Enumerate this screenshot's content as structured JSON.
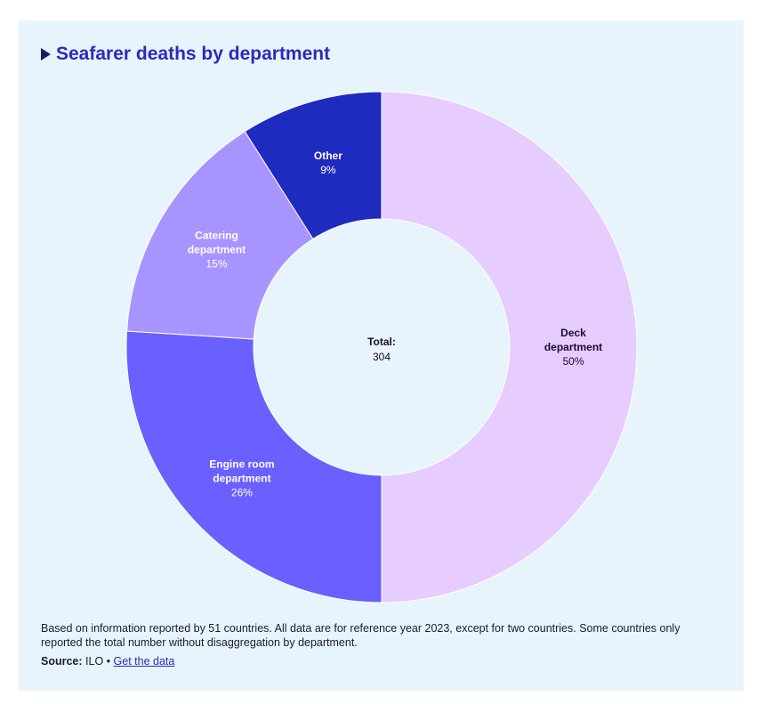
{
  "title": "Seafarer deaths by department",
  "chart_data": {
    "type": "pie",
    "variant": "donut",
    "categories": [
      "Deck department",
      "Engine room department",
      "Catering department",
      "Other"
    ],
    "percentages": [
      50,
      26,
      15,
      9
    ],
    "percent_labels": [
      "50%",
      "26%",
      "15%",
      "9%"
    ],
    "label_lines": [
      [
        "Deck",
        "department"
      ],
      [
        "Engine room",
        "department"
      ],
      [
        "Catering",
        "department"
      ],
      [
        "Other"
      ]
    ],
    "colors": [
      "#e6ccff",
      "#6a5fff",
      "#a894ff",
      "#1f2bbf"
    ],
    "label_colors": [
      "#1a0a33",
      "#ffffff",
      "#ffffff",
      "#ffffff"
    ],
    "center_label": "Total:",
    "total": "304",
    "legend": "none"
  },
  "footnote": "Based on information reported by 51 countries. All data are for reference year 2023, except for two countries. Some countries only reported the total number without disaggregation by department.",
  "source": {
    "label": "Source:",
    "value": "ILO",
    "separator": "•",
    "link_text": "Get the data"
  }
}
